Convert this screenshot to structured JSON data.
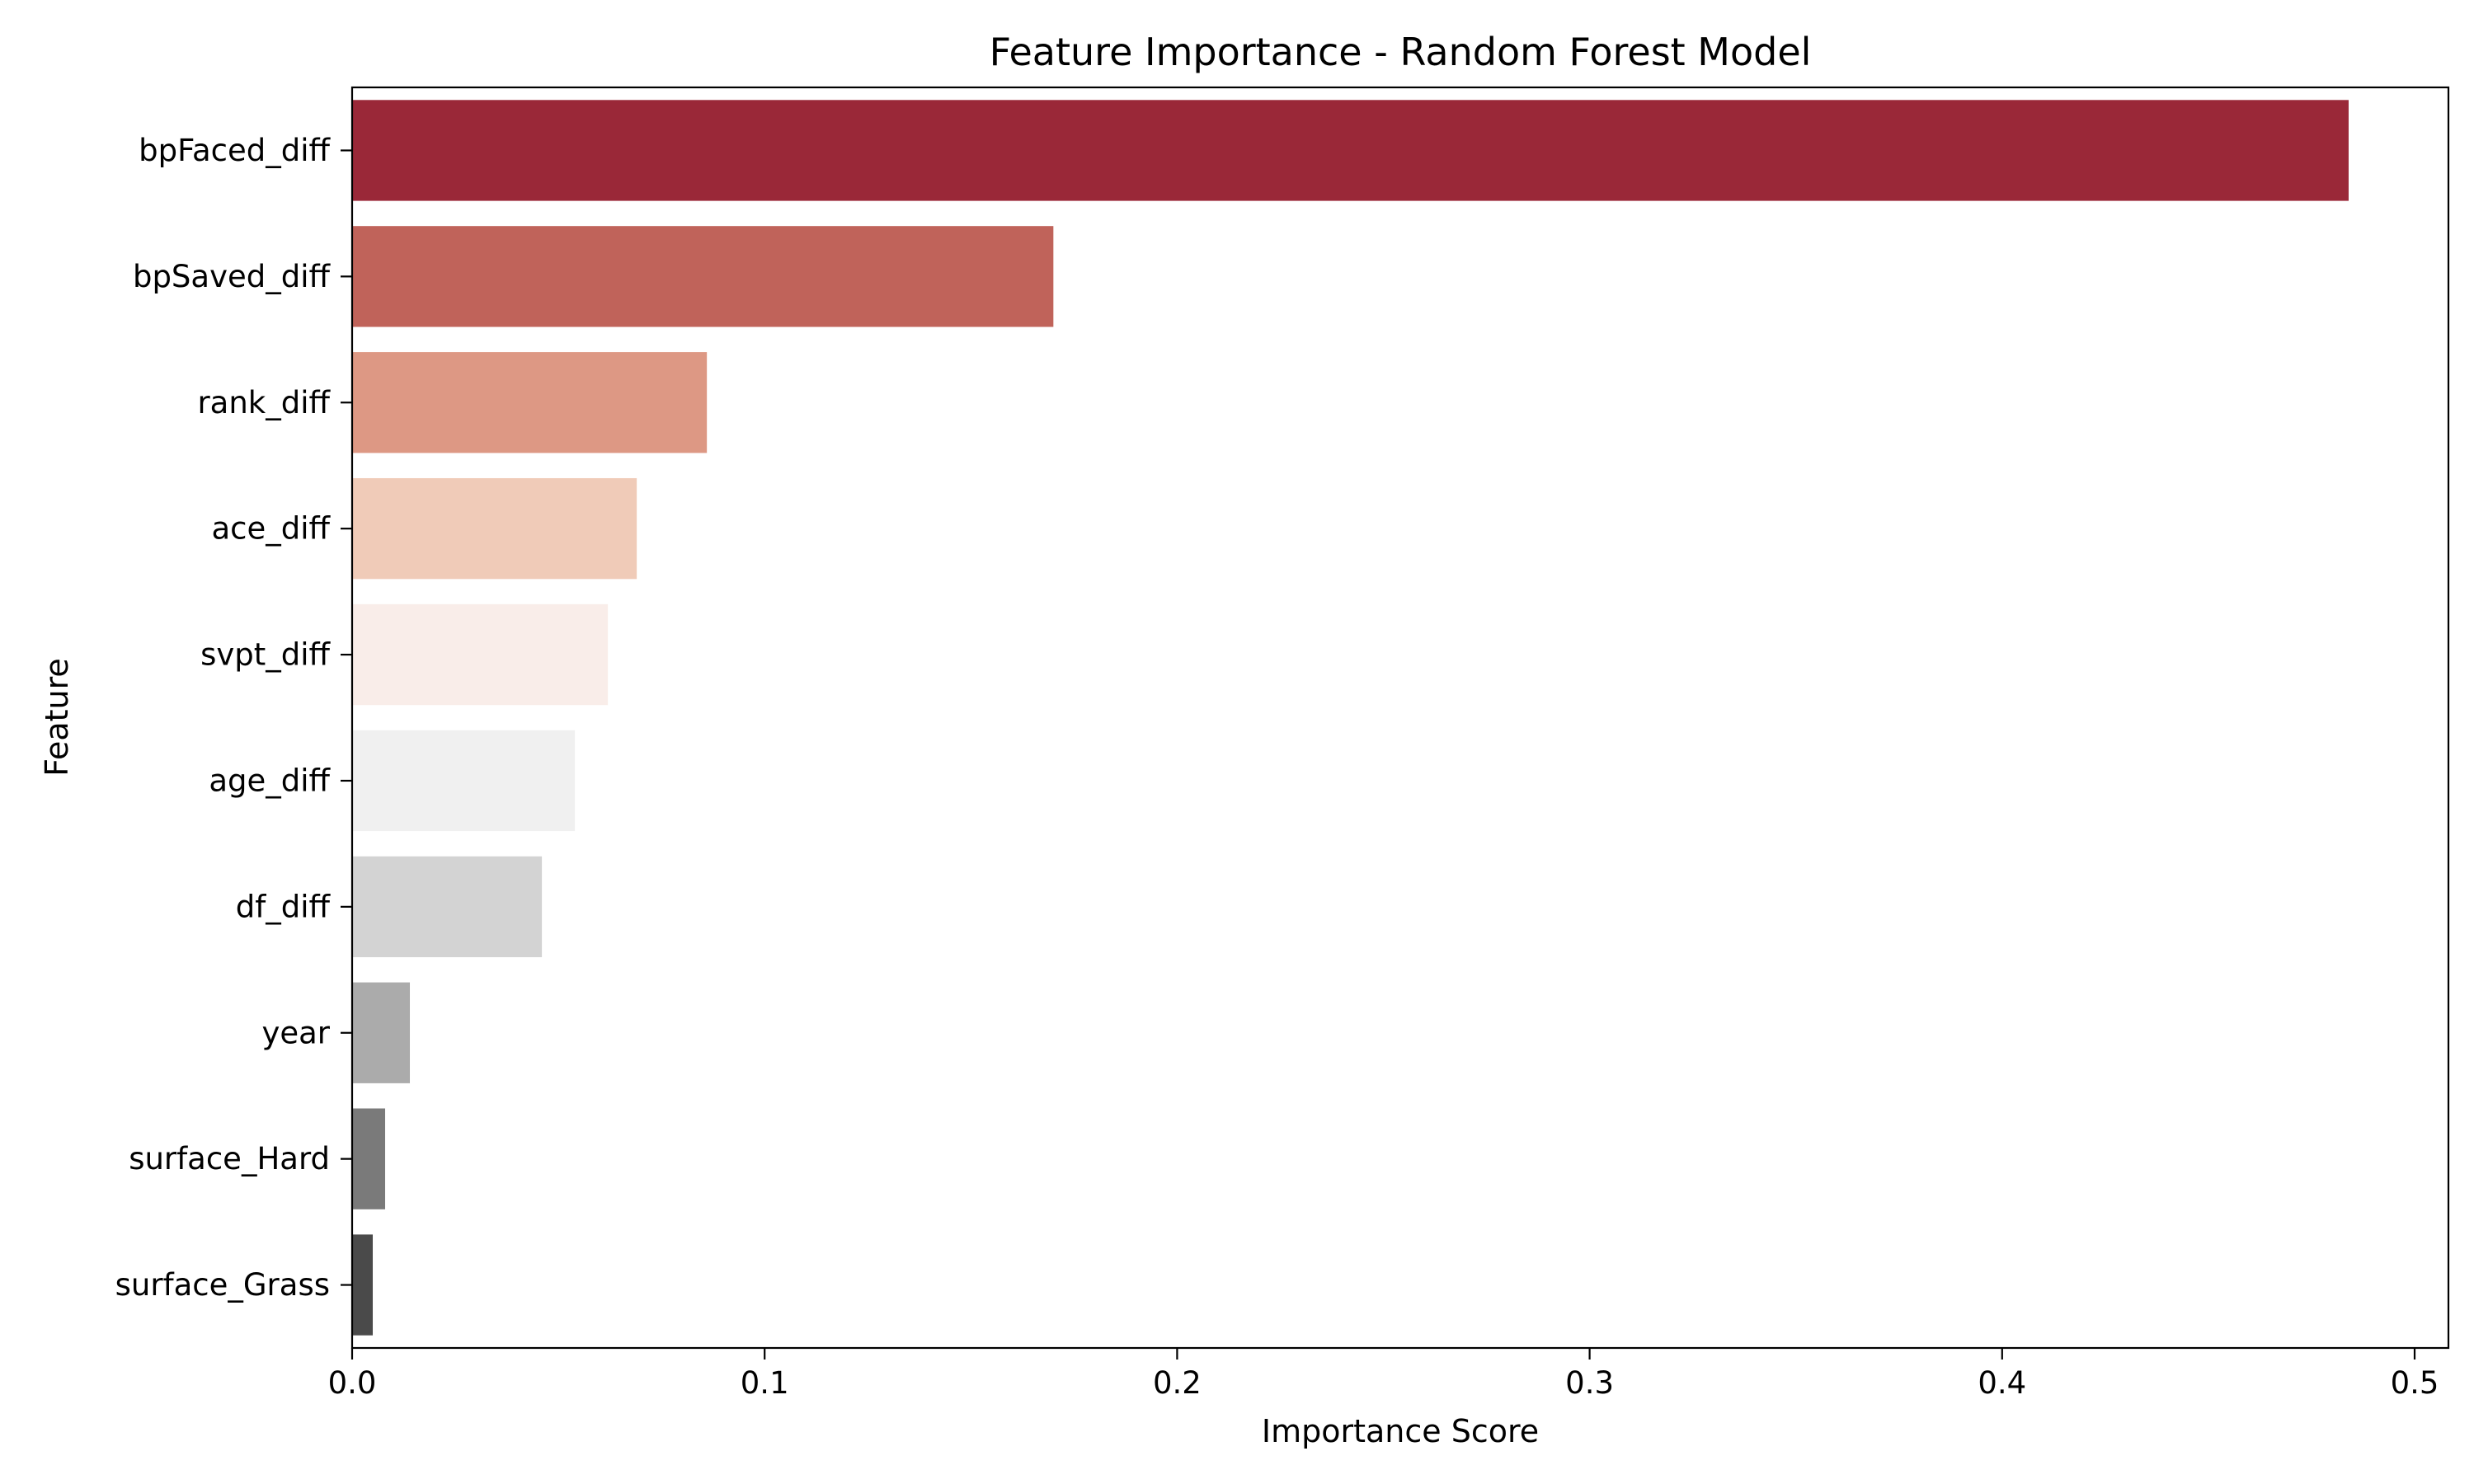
{
  "chart_data": {
    "type": "bar",
    "orientation": "horizontal",
    "title": "Feature Importance - Random Forest Model",
    "xlabel": "Importance Score",
    "ylabel": "Feature",
    "xlim": [
      0,
      0.5
    ],
    "xticks": [
      "0.0",
      "0.1",
      "0.2",
      "0.3",
      "0.4",
      "0.5"
    ],
    "grid": false,
    "categories": [
      "bpFaced_diff",
      "bpSaved_diff",
      "rank_diff",
      "ace_diff",
      "svpt_diff",
      "age_diff",
      "df_diff",
      "year",
      "surface_Hard",
      "surface_Grass"
    ],
    "values": [
      0.484,
      0.17,
      0.086,
      0.069,
      0.062,
      0.054,
      0.046,
      0.014,
      0.008,
      0.005
    ],
    "colors": [
      "#9a2838",
      "#c0635a",
      "#dd9884",
      "#f0cbb8",
      "#f9ede9",
      "#f0f0f0",
      "#d3d3d3",
      "#ababab",
      "#7a7a7a",
      "#4a4a4a"
    ]
  }
}
